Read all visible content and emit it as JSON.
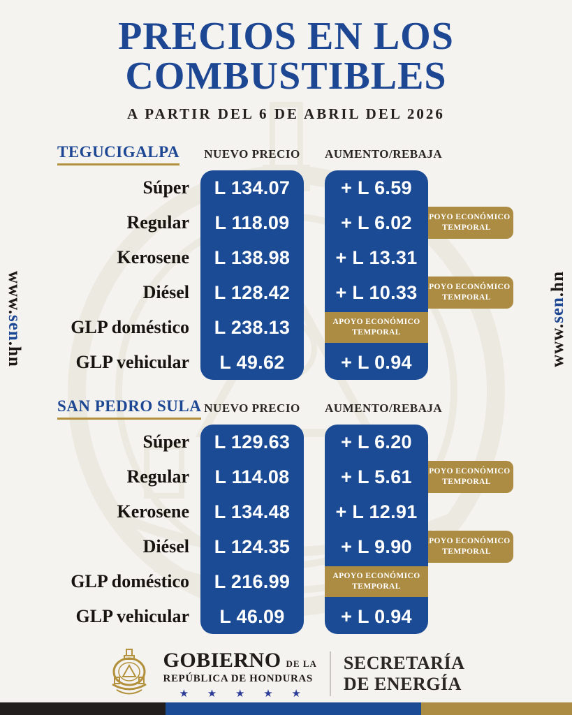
{
  "poster": {
    "title_line1": "PRECIOS EN LOS",
    "title_line2": "COMBUSTIBLES",
    "subtitle": "A PARTIR DEL 6 DE ABRIL DEL 2026",
    "side_url": {
      "prefix": "www.",
      "highlight": "sen",
      "suffix": ".hn"
    }
  },
  "columns": {
    "new_price": "NUEVO PRECIO",
    "change": "AUMENTO/REBAJA"
  },
  "support_badge": {
    "line1": "APOYO ECONÓMICO",
    "line2": "TEMPORAL"
  },
  "sections": [
    {
      "city": "TEGUCIGALPA",
      "rows": [
        {
          "fuel": "Súper",
          "new_price": "L 134.07",
          "change": "+ L 6.59",
          "change_type": "value",
          "side_badge": false
        },
        {
          "fuel": "Regular",
          "new_price": "L 118.09",
          "change": "+ L 6.02",
          "change_type": "value",
          "side_badge": true
        },
        {
          "fuel": "Kerosene",
          "new_price": "L 138.98",
          "change": "+ L 13.31",
          "change_type": "value",
          "side_badge": false
        },
        {
          "fuel": "Diésel",
          "new_price": "L 128.42",
          "change": "+ L 10.33",
          "change_type": "value",
          "side_badge": true
        },
        {
          "fuel": "GLP doméstico",
          "new_price": "L 238.13",
          "change": "",
          "change_type": "support",
          "side_badge": false
        },
        {
          "fuel": "GLP vehicular",
          "new_price": "L 49.62",
          "change": "+ L 0.94",
          "change_type": "value",
          "side_badge": false
        }
      ]
    },
    {
      "city": "SAN PEDRO SULA",
      "rows": [
        {
          "fuel": "Súper",
          "new_price": "L 129.63",
          "change": "+ L 6.20",
          "change_type": "value",
          "side_badge": false
        },
        {
          "fuel": "Regular",
          "new_price": "L 114.08",
          "change": "+ L 5.61",
          "change_type": "value",
          "side_badge": true
        },
        {
          "fuel": "Kerosene",
          "new_price": "L 134.48",
          "change": "+ L 12.91",
          "change_type": "value",
          "side_badge": false
        },
        {
          "fuel": "Diésel",
          "new_price": "L 124.35",
          "change": "+ L 9.90",
          "change_type": "value",
          "side_badge": true
        },
        {
          "fuel": "GLP doméstico",
          "new_price": "L 216.99",
          "change": "",
          "change_type": "support",
          "side_badge": false
        },
        {
          "fuel": "GLP vehicular",
          "new_price": "L 46.09",
          "change": "+ L 0.94",
          "change_type": "value",
          "side_badge": false
        }
      ]
    }
  ],
  "footer": {
    "gov_name": "GOBIERNO",
    "gov_name_suffix": "DE LA",
    "gov_subtitle": "REPÚBLICA DE HONDURAS",
    "stars": "★ ★ ★ ★ ★",
    "ministry_line1": "SECRETARÍA",
    "ministry_line2": "DE ENERGÍA"
  },
  "colors": {
    "blue": "#1c4b96",
    "title_blue": "#1d4693",
    "gold": "#ac8b42",
    "dark": "#211e1c"
  }
}
